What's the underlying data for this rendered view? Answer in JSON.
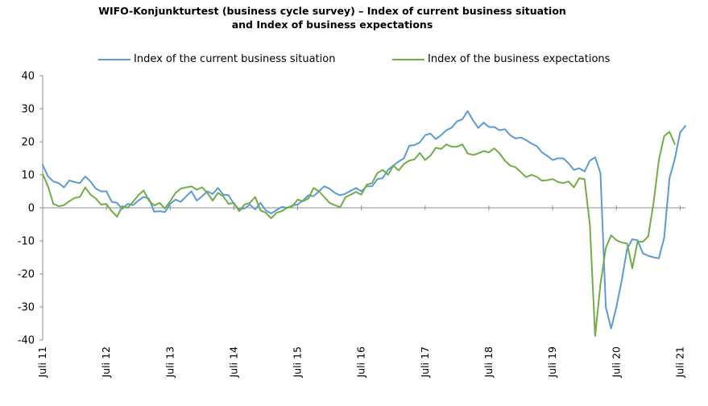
{
  "chart_data": {
    "type": "line",
    "title_lines": [
      "WIFO-Konjunkturtest (business cycle survey) – Index of current business situation",
      "and Index of business expectations"
    ],
    "xlabel": "",
    "ylabel": "",
    "ylim": [
      -40,
      40
    ],
    "yticks": [
      40,
      30,
      20,
      10,
      0,
      -10,
      -20,
      -30,
      -40
    ],
    "x_start_month": "2011-07",
    "xtick_labels": [
      "Juli 11",
      "Juli 12",
      "Juli 13",
      "Juli 14",
      "Juli 15",
      "Juli 16",
      "Juli 17",
      "Juli 18",
      "Juli 19",
      "Juli 20",
      "Juli 21"
    ],
    "grid": false,
    "legend_position": "top",
    "series": [
      {
        "name": "Index of the current business situation",
        "color": "#5b9bd5",
        "values": [
          13,
          9.5,
          8,
          7.5,
          6.2,
          8.3,
          7.8,
          7.5,
          9.5,
          8,
          5.8,
          5,
          5,
          1.8,
          1.5,
          -0.3,
          1.2,
          0.8,
          2.2,
          3.3,
          2.8,
          -1.2,
          -1,
          -1.3,
          1.2,
          2.5,
          1.8,
          3.5,
          5,
          2.2,
          3.5,
          5,
          4.2,
          6,
          4,
          3.8,
          1.2,
          -0.5,
          -0.2,
          1,
          -0.5,
          1.5,
          -0.8,
          -1.7,
          -0.7,
          0.3,
          0,
          0.7,
          1,
          2.2,
          3.8,
          3.5,
          5,
          6.5,
          5.8,
          4.5,
          3.8,
          4.3,
          5.2,
          6,
          5,
          6.5,
          6.5,
          8.7,
          9,
          11.5,
          12.8,
          14,
          15,
          18.8,
          19,
          19.8,
          22,
          22.5,
          20.8,
          22,
          23.5,
          24.3,
          26.2,
          26.8,
          29.3,
          26.5,
          24.2,
          25.8,
          24.5,
          24.5,
          23.5,
          23.8,
          22,
          21,
          21.3,
          20.5,
          19.5,
          18.7,
          16.8,
          15.7,
          14.5,
          15,
          15,
          13.5,
          11.5,
          12,
          11,
          14.3,
          15.3,
          10.5,
          -30,
          -36.5,
          -30,
          -22,
          -12.5,
          -9.5,
          -9.8,
          -13.8,
          -14.5,
          -15,
          -15.3,
          -9,
          9,
          14.8,
          22.8,
          24.8
        ]
      },
      {
        "name": "Index of the business expectations",
        "color": "#70ad47",
        "values": [
          10.2,
          6.5,
          1.2,
          0.5,
          0.8,
          2,
          3,
          3.3,
          6.2,
          4,
          2.8,
          1,
          1.2,
          -1,
          -2.7,
          0.5,
          0,
          1.8,
          3.8,
          5.3,
          2.2,
          0.7,
          1.5,
          -0.2,
          2,
          4.5,
          5.8,
          6.2,
          6.5,
          5.5,
          6.2,
          4.5,
          2.2,
          4.5,
          3.5,
          1.2,
          1.5,
          -1,
          1,
          1.5,
          3.3,
          -0.8,
          -1.5,
          -3.2,
          -1.5,
          -1,
          0,
          0.5,
          2.5,
          2,
          2.8,
          6,
          5,
          3.3,
          1.5,
          0.8,
          0.2,
          3.2,
          4,
          4.8,
          4,
          7,
          7.5,
          10.5,
          11.5,
          10,
          12.8,
          11.3,
          13.3,
          14.3,
          14.7,
          16.6,
          14.5,
          15.8,
          18.2,
          17.8,
          19.2,
          18.5,
          18.5,
          19.2,
          16.5,
          16,
          16.5,
          17.2,
          16.8,
          18,
          16.5,
          14.3,
          12.8,
          12.3,
          10.8,
          9.3,
          10,
          9.4,
          8.2,
          8.4,
          8.7,
          7.8,
          7.5,
          8,
          6.2,
          9,
          8.7,
          -5,
          -38.8,
          -23,
          -12.2,
          -8.3,
          -9.8,
          -10.5,
          -10.8,
          -18.3,
          -10.2,
          -10.3,
          -8.6,
          1.5,
          14.5,
          21.7,
          23,
          19.3
        ]
      }
    ]
  }
}
